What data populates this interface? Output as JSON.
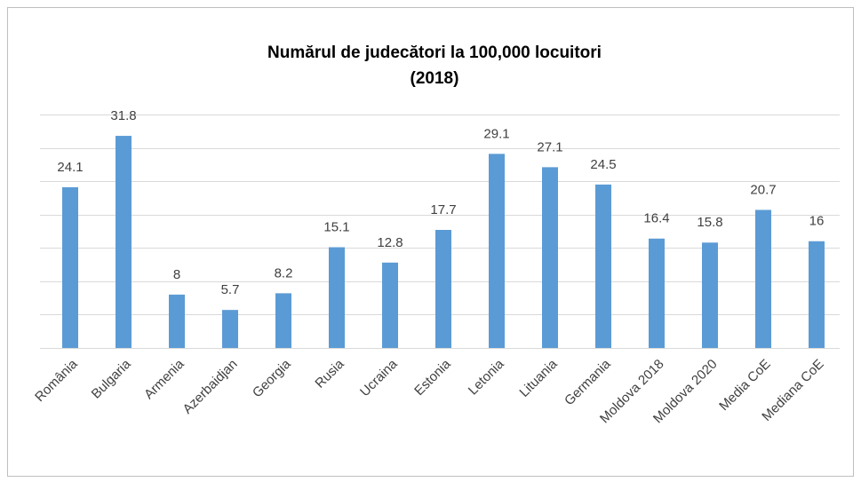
{
  "chart_data": {
    "type": "bar",
    "title_lines": [
      "Numărul de judecători la 100,000 locuitori",
      "(2018)"
    ],
    "categories": [
      "România",
      "Bulgaria",
      "Armenia",
      "Azerbaidjan",
      "Georgia",
      "Rusia",
      "Ucraina",
      "Estonia",
      "Letonia",
      "Lituania",
      "Germania",
      "Moldova 2018",
      "Moldova 2020",
      "Media CoE",
      "Mediana CoE"
    ],
    "values": [
      24.1,
      31.8,
      8,
      5.7,
      8.2,
      15.1,
      12.8,
      17.7,
      29.1,
      27.1,
      24.5,
      16.4,
      15.8,
      20.7,
      16
    ],
    "color": "#5b9bd5",
    "ylim": [
      0,
      35
    ],
    "yticks": [
      0,
      5,
      10,
      15,
      20,
      25,
      30,
      35
    ],
    "grid": true
  }
}
